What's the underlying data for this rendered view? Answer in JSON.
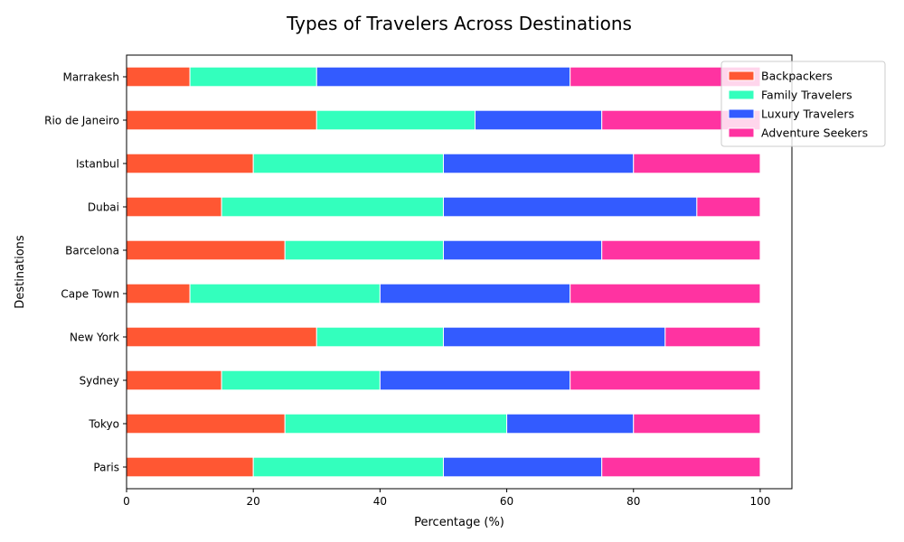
{
  "chart_data": {
    "type": "bar",
    "orientation": "horizontal",
    "stacked": true,
    "title": "Types of Travelers Across Destinations",
    "xlabel": "Percentage (%)",
    "ylabel": "Destinations",
    "xlim": [
      0,
      105
    ],
    "xticks": [
      0,
      20,
      40,
      60,
      80,
      100
    ],
    "grid": false,
    "legend_position": "top-right",
    "categories": [
      "Paris",
      "Tokyo",
      "Sydney",
      "New York",
      "Cape Town",
      "Barcelona",
      "Dubai",
      "Istanbul",
      "Rio de Janeiro",
      "Marrakesh"
    ],
    "series": [
      {
        "name": "Backpackers",
        "color": "#ff5733",
        "values": [
          20,
          25,
          15,
          30,
          10,
          25,
          15,
          20,
          30,
          10
        ]
      },
      {
        "name": "Family Travelers",
        "color": "#33ffbd",
        "values": [
          30,
          35,
          25,
          20,
          30,
          25,
          35,
          30,
          25,
          20
        ]
      },
      {
        "name": "Luxury Travelers",
        "color": "#335bff",
        "values": [
          25,
          20,
          30,
          35,
          30,
          25,
          40,
          30,
          20,
          40
        ]
      },
      {
        "name": "Adventure Seekers",
        "color": "#ff33a1",
        "values": [
          25,
          20,
          30,
          15,
          30,
          25,
          10,
          20,
          25,
          30
        ]
      }
    ]
  }
}
